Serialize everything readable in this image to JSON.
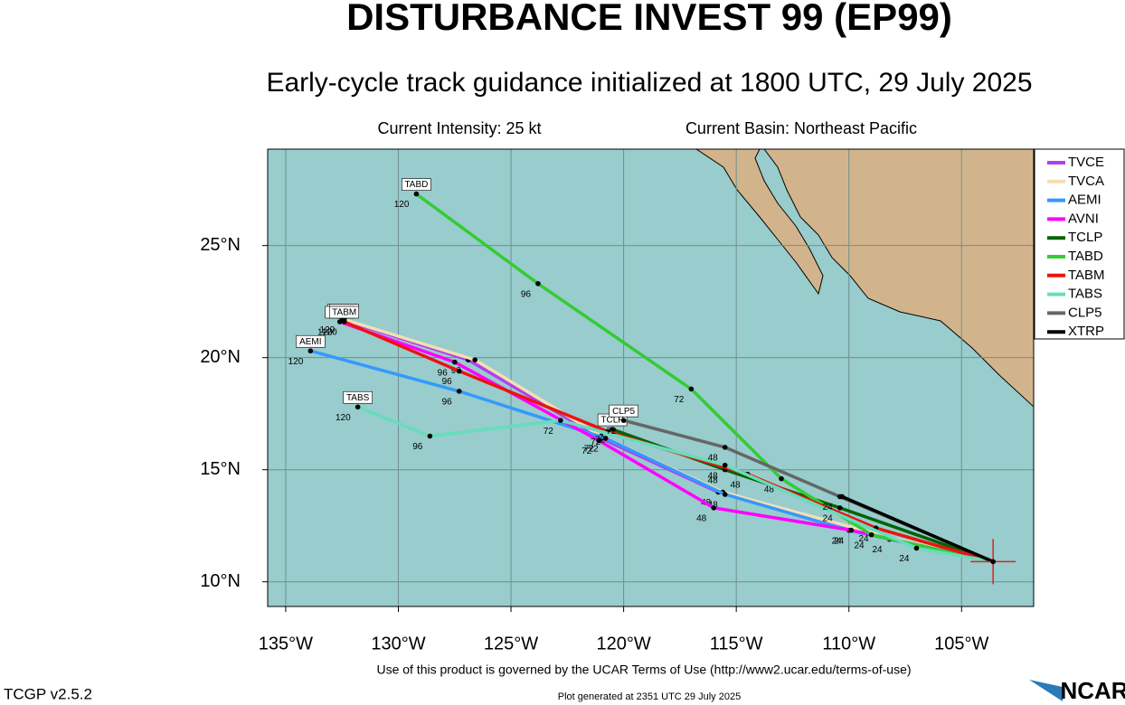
{
  "chart_data": {
    "type": "track",
    "title": "DISTURBANCE INVEST 99 (EP99)",
    "subtitle": "Early-cycle track guidance initialized at 1800 UTC, 29 July 2025",
    "intensity": "Current Intensity: 25 kt",
    "basin": "Current Basin: Northeast Pacific",
    "xlim": [
      -135.8,
      -101.8
    ],
    "ylim": [
      8.9,
      29.3
    ],
    "xticks": [
      {
        "value": -135,
        "label": "135°W"
      },
      {
        "value": -130,
        "label": "130°W"
      },
      {
        "value": -125,
        "label": "125°W"
      },
      {
        "value": -120,
        "label": "120°W"
      },
      {
        "value": -115,
        "label": "115°W"
      },
      {
        "value": -110,
        "label": "110°W"
      },
      {
        "value": -105,
        "label": "105°W"
      }
    ],
    "yticks": [
      {
        "value": 10,
        "label": "10°N"
      },
      {
        "value": 15,
        "label": "15°N"
      },
      {
        "value": 20,
        "label": "20°N"
      },
      {
        "value": 25,
        "label": "25°N"
      }
    ],
    "grid": true,
    "series": [
      {
        "name": "TVCE",
        "color": "#b040f0",
        "x": [
          -103.6,
          -108.2,
          -115.8,
          -121.0,
          -126.9,
          -132.5
        ],
        "y": [
          10.9,
          11.9,
          14.0,
          16.4,
          19.9,
          21.7
        ],
        "hour_labels": [
          null,
          24,
          48,
          72,
          96,
          120
        ]
      },
      {
        "name": "TVCA",
        "color": "#f5deb3",
        "x": [
          -103.6,
          -108.3,
          -115.6,
          -121.0,
          -126.6,
          -132.4
        ],
        "y": [
          10.9,
          12.0,
          14.0,
          16.5,
          19.9,
          21.7
        ],
        "hour_labels": [
          null,
          null,
          null,
          null,
          null,
          null
        ]
      },
      {
        "name": "AEMI",
        "color": "#3399ff",
        "x": [
          -103.6,
          -110.0,
          -115.5,
          -120.8,
          -127.3,
          -133.9
        ],
        "y": [
          10.9,
          12.3,
          13.9,
          16.4,
          18.5,
          20.3
        ],
        "hour_labels": [
          null,
          24,
          48,
          72,
          96,
          120
        ]
      },
      {
        "name": "AVNI",
        "color": "#ff00ff",
        "x": [
          -103.6,
          -109.9,
          -116.0,
          -121.1,
          -127.5,
          -132.6
        ],
        "y": [
          10.9,
          12.3,
          13.3,
          16.3,
          19.8,
          21.6
        ],
        "hour_labels": [
          null,
          24,
          48,
          72,
          96,
          120
        ]
      },
      {
        "name": "TCLP",
        "color": "#006400",
        "x": [
          -103.6,
          -110.4,
          -115.5,
          -120.5
        ],
        "y": [
          10.9,
          13.3,
          15.0,
          16.8
        ],
        "hour_labels": [
          null,
          24,
          48,
          72
        ]
      },
      {
        "name": "TABD",
        "color": "#33cc33",
        "x": [
          -103.6,
          -109.0,
          -113.0,
          -117.0,
          -123.8,
          -129.2
        ],
        "y": [
          10.9,
          12.1,
          14.6,
          18.6,
          23.3,
          27.3
        ],
        "hour_labels": [
          null,
          24,
          48,
          72,
          96,
          120
        ]
      },
      {
        "name": "TABM",
        "color": "#ee1111",
        "x": [
          -103.6,
          -108.8,
          -114.5,
          -120.7,
          -127.3,
          -132.4
        ],
        "y": [
          10.9,
          12.4,
          14.8,
          16.7,
          19.4,
          21.6
        ],
        "hour_labels": [
          null,
          24,
          48,
          72,
          96,
          120
        ]
      },
      {
        "name": "TABS",
        "color": "#66ddbb",
        "x": [
          -103.6,
          -107.0,
          -115.5,
          -122.8,
          -128.6,
          -131.8
        ],
        "y": [
          10.9,
          11.5,
          15.2,
          17.2,
          16.5,
          17.8
        ],
        "hour_labels": [
          null,
          24,
          48,
          72,
          96,
          120
        ]
      },
      {
        "name": "CLP5",
        "color": "#666666",
        "x": [
          -103.6,
          -110.4,
          -115.5,
          -120.0
        ],
        "y": [
          10.9,
          13.8,
          16.0,
          17.2
        ],
        "hour_labels": [
          null,
          24,
          48,
          72
        ]
      },
      {
        "name": "XTRP",
        "color": "#000000",
        "x": [
          -103.6,
          -110.3
        ],
        "y": [
          10.9,
          13.8
        ],
        "hour_labels": [
          null,
          null
        ]
      }
    ]
  },
  "footer": {
    "terms": "Use of this product is governed by the UCAR Terms of Use (http://www2.ucar.edu/terms-of-use)",
    "version": "TCGP v2.5.2",
    "generated": "Plot generated at 2351 UTC   29 July 2025",
    "logo": "NCAR"
  }
}
